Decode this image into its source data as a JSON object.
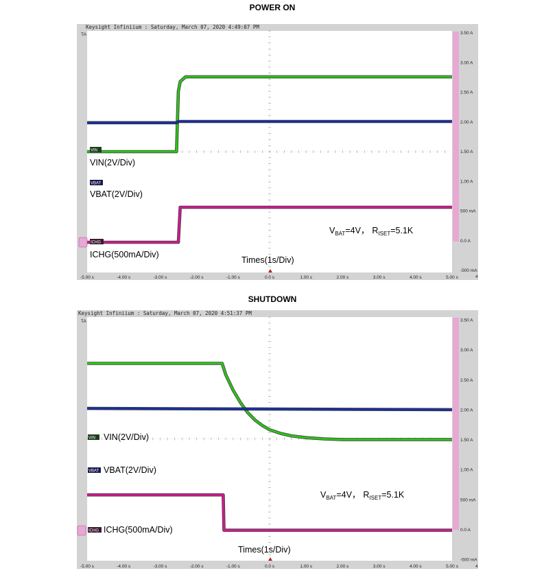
{
  "panels": [
    {
      "title": "POWER ON",
      "header": "Keysight Infiniium : Saturday, March 07, 2020 4:49:07 PM",
      "corner_marker": "TA",
      "x_ticks": [
        "-5.00 s",
        "-4.00 s",
        "-3.00 s",
        "-2.00 s",
        "-1.00 s",
        "0.0 s",
        "1.00 s",
        "2.00 s",
        "3.00 s",
        "4.00 s",
        "5.00 s"
      ],
      "x_end": "4",
      "y_ticks": [
        "3.50 A",
        "3.00 A",
        "2.50 A",
        "2.00 A",
        "1.50 A",
        "1.00 A",
        "500 mA",
        "0.0 A",
        "-500 mA"
      ],
      "channel_badges": [
        "VIN",
        "VBAT",
        "ICHG"
      ],
      "labels": {
        "vin": "VIN(2V/Div)",
        "vbat": "VBAT(2V/Div)",
        "ichg": "ICHG(500mA/Div)",
        "time": "Times(1s/Div)"
      },
      "condition": {
        "v": "V",
        "v_sub": "BAT",
        "v_val": "=4V，",
        "r": "R",
        "r_sub": "ISET",
        "r_val": "=5.1K"
      }
    },
    {
      "title": "SHUTDOWN",
      "header": "Keysight Infiniium : Saturday, March 07, 2020 4:51:37 PM",
      "corner_marker": "TA",
      "x_ticks": [
        "-5.00 s",
        "-4.00 s",
        "-3.00 s",
        "-2.00 s",
        "-1.00 s",
        "0.0 s",
        "1.00 s",
        "2.00 s",
        "3.00 s",
        "4.00 s",
        "5.00 s"
      ],
      "x_end": "4",
      "y_ticks": [
        "3.50 A",
        "3.00 A",
        "2.50 A",
        "2.00 A",
        "1.50 A",
        "1.00 A",
        "500 mA",
        "0.0 A",
        "-500 mA"
      ],
      "channel_badges": [
        "VIN",
        "VBAT",
        "ICHG"
      ],
      "labels": {
        "vin": "VIN(2V/Div)",
        "vbat": "VBAT(2V/Div)",
        "ichg": "ICHG(500mA/Div)",
        "time": "Times(1s/Div)"
      },
      "condition": {
        "v": "V",
        "v_sub": "BAT",
        "v_val": "=4V，",
        "r": "R",
        "r_sub": "ISET",
        "r_val": "=5.1K"
      }
    }
  ],
  "chart_data": [
    {
      "type": "line",
      "title": "POWER ON",
      "xlabel": "Times(1s/Div)",
      "xlim": [
        -5,
        5
      ],
      "ylim": [
        -0.5,
        3.5
      ],
      "y_unit": "A",
      "series": [
        {
          "name": "VIN(2V/Div)",
          "color": "#2ec21a",
          "x": [
            -5,
            -2.55,
            -2.5,
            -2.45,
            -2.3,
            5
          ],
          "y": [
            1.5,
            1.5,
            2.5,
            2.66,
            2.74,
            2.74
          ]
        },
        {
          "name": "VBAT(2V/Div)",
          "color": "#1a2f9e",
          "x": [
            -5,
            -2.55,
            -2.5,
            5
          ],
          "y": [
            1.98,
            1.98,
            2.0,
            2.0
          ]
        },
        {
          "name": "ICHG(500mA/Div)",
          "color": "#d01a8f",
          "x": [
            -5,
            -2.5,
            -2.45,
            5
          ],
          "y": [
            0.0,
            0.0,
            0.58,
            0.58
          ]
        }
      ]
    },
    {
      "type": "line",
      "title": "SHUTDOWN",
      "xlabel": "Times(1s/Div)",
      "xlim": [
        -5,
        5
      ],
      "ylim": [
        -0.5,
        3.5
      ],
      "y_unit": "A",
      "series": [
        {
          "name": "VIN(2V/Div)",
          "color": "#2ec21a",
          "x": [
            -5,
            -1.3,
            -1.2,
            -1.0,
            -0.8,
            -0.6,
            -0.4,
            -0.2,
            0.0,
            0.3,
            0.6,
            1.0,
            1.5,
            2.0,
            3.0,
            5
          ],
          "y": [
            2.74,
            2.74,
            2.55,
            2.3,
            2.1,
            1.93,
            1.81,
            1.72,
            1.65,
            1.59,
            1.55,
            1.52,
            1.5,
            1.49,
            1.49,
            1.49
          ]
        },
        {
          "name": "VBAT(2V/Div)",
          "color": "#1a2f9e",
          "x": [
            -5,
            5
          ],
          "y": [
            2.0,
            1.98
          ]
        },
        {
          "name": "ICHG(500mA/Div)",
          "color": "#d01a8f",
          "x": [
            -5,
            -1.27,
            -1.25,
            5
          ],
          "y": [
            0.58,
            0.58,
            0.0,
            0.0
          ]
        }
      ]
    }
  ]
}
